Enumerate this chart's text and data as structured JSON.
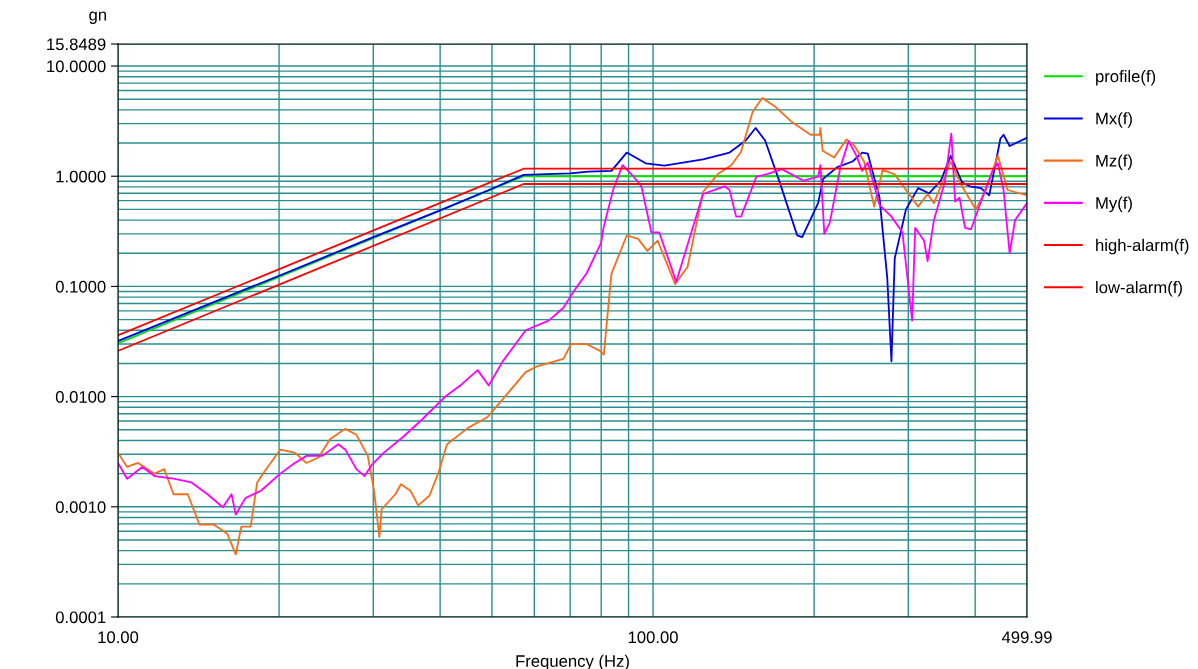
{
  "chart_data": {
    "type": "line",
    "xlabel": "Frequency (Hz)",
    "ylabel": "gn",
    "log": "xy",
    "grid": true,
    "legend": "right",
    "line_style": "solid",
    "marker": "none",
    "xlim": [
      10,
      499.99
    ],
    "ylim": [
      0.0001,
      15.8489
    ],
    "xticks": [
      {
        "value": 10,
        "label": "10.00"
      },
      {
        "value": 100,
        "label": "100.00"
      },
      {
        "value": 499.99,
        "label": "499.99"
      }
    ],
    "yticks": [
      {
        "value": 0.0001,
        "label": "0.0001"
      },
      {
        "value": 0.001,
        "label": "0.0010"
      },
      {
        "value": 0.01,
        "label": "0.0100"
      },
      {
        "value": 0.1,
        "label": "0.1000"
      },
      {
        "value": 1,
        "label": "1.0000"
      },
      {
        "value": 10,
        "label": "10.0000"
      },
      {
        "value": 15.8489,
        "label": "15.8489"
      }
    ],
    "series": [
      {
        "name": "profile(f)",
        "color": "#00e000",
        "x": [
          10,
          57.3,
          499.99
        ],
        "values": [
          0.0305,
          1,
          1
        ]
      },
      {
        "name": "Mx(f)",
        "color": "#0000e0",
        "x": [
          10,
          20,
          30,
          40,
          50,
          57.3,
          70,
          75.7,
          83.6,
          89.3,
          96.9,
          105,
          124,
          139,
          149,
          155.5,
          162,
          172.5,
          186,
          190,
          203.5,
          208,
          221,
          236,
          246,
          252,
          265,
          274,
          279,
          283,
          297,
          313,
          328,
          345,
          360,
          378,
          391,
          410,
          425,
          446,
          452,
          464,
          499.99
        ],
        "values": [
          0.032,
          0.125,
          0.28,
          0.49,
          0.77,
          1.03,
          1.06,
          1.1,
          1.12,
          1.64,
          1.31,
          1.25,
          1.42,
          1.64,
          2.11,
          2.74,
          2.11,
          0.88,
          0.29,
          0.28,
          0.57,
          0.95,
          1.21,
          1.36,
          1.64,
          1.6,
          0.64,
          0.12,
          0.021,
          0.18,
          0.5,
          0.78,
          0.7,
          0.91,
          1.53,
          0.88,
          0.81,
          0.78,
          0.67,
          2.2,
          2.38,
          1.88,
          2.23
        ]
      },
      {
        "name": "Mz(f)",
        "color": "#f26f1c",
        "x": [
          10,
          10.4,
          10.9,
          11.7,
          12.2,
          12.7,
          13.5,
          14.2,
          15.1,
          16,
          16.6,
          17,
          17.7,
          18.2,
          18.8,
          20.1,
          21.4,
          22.5,
          23.7,
          24.9,
          26.6,
          27.9,
          29.3,
          30.1,
          30.8,
          31.1,
          33,
          33.8,
          35.2,
          36.4,
          38.2,
          39.8,
          41.2,
          45.1,
          49,
          51.4,
          57.8,
          60.7,
          68,
          70.3,
          75.1,
          79.6,
          80.9,
          83.6,
          89.3,
          93.8,
          97.6,
          102,
          110,
          116,
          124,
          132,
          140,
          146,
          153.5,
          160,
          169,
          181,
          197,
          205,
          205.5,
          207.5,
          218,
          230,
          238,
          248,
          259,
          268.5,
          283,
          297,
          313,
          326,
          335,
          360,
          378,
          401,
          419,
          441,
          460,
          499.99
        ],
        "values": [
          0.0031,
          0.0023,
          0.0025,
          0.002,
          0.0022,
          0.0013,
          0.0013,
          0.00069,
          0.00069,
          0.00057,
          0.00037,
          0.00066,
          0.00066,
          0.00166,
          0.0021,
          0.0033,
          0.0031,
          0.0025,
          0.0028,
          0.0041,
          0.0051,
          0.0045,
          0.0029,
          0.0014,
          0.00053,
          0.00095,
          0.0013,
          0.0016,
          0.0014,
          0.00103,
          0.00126,
          0.0021,
          0.0037,
          0.0052,
          0.0065,
          0.0085,
          0.0167,
          0.0188,
          0.022,
          0.03,
          0.03,
          0.026,
          0.024,
          0.13,
          0.29,
          0.27,
          0.21,
          0.26,
          0.105,
          0.15,
          0.72,
          1.04,
          1.26,
          1.66,
          3.83,
          5.13,
          4.3,
          3.16,
          2.38,
          2.38,
          2.74,
          1.7,
          1.48,
          2.16,
          1.88,
          1.36,
          0.53,
          1.14,
          1.04,
          0.75,
          0.53,
          0.69,
          0.57,
          1.36,
          0.81,
          0.5,
          0.75,
          1.54,
          0.75,
          0.67
        ]
      },
      {
        "name": "My(f)",
        "color": "#ff00ff",
        "x": [
          10,
          10.4,
          11.1,
          11.7,
          12.7,
          13.7,
          14.7,
          15.7,
          16.3,
          16.6,
          17.3,
          18.5,
          20.1,
          21.4,
          22.5,
          24.1,
          25.8,
          26.6,
          27.9,
          28.9,
          29.8,
          31.4,
          34.1,
          37,
          40.8,
          43.6,
          47,
          49.3,
          52.4,
          57.8,
          63.8,
          68,
          71.6,
          75.1,
          80,
          80.8,
          84.2,
          87.7,
          92,
          95.1,
          99.3,
          102.7,
          110.5,
          124,
          136,
          139,
          143,
          146,
          156,
          164,
          174,
          191,
          203.5,
          205.5,
          209,
          214,
          224,
          232,
          240,
          246,
          252,
          265,
          279,
          292.5,
          305,
          309,
          321,
          326,
          335,
          351,
          361,
          367,
          374,
          383,
          393,
          415,
          431,
          441,
          452,
          464,
          475,
          499.99
        ],
        "values": [
          0.0025,
          0.0018,
          0.0023,
          0.0019,
          0.0018,
          0.00167,
          0.0013,
          0.00099,
          0.0013,
          0.00085,
          0.0012,
          0.0014,
          0.002,
          0.0025,
          0.0029,
          0.0029,
          0.0037,
          0.0033,
          0.0022,
          0.0019,
          0.0024,
          0.0031,
          0.0043,
          0.0062,
          0.0099,
          0.0126,
          0.0174,
          0.0126,
          0.021,
          0.04,
          0.049,
          0.064,
          0.095,
          0.131,
          0.25,
          0.34,
          0.75,
          1.26,
          0.99,
          0.81,
          0.31,
          0.31,
          0.11,
          0.69,
          0.81,
          0.75,
          0.43,
          0.43,
          0.99,
          1.05,
          1.16,
          0.91,
          0.99,
          1.26,
          0.3,
          0.38,
          1.21,
          2.08,
          1.53,
          1.12,
          1.33,
          0.55,
          0.43,
          0.31,
          0.049,
          0.34,
          0.26,
          0.17,
          0.4,
          0.88,
          2.43,
          0.59,
          0.64,
          0.34,
          0.33,
          0.69,
          1.12,
          1.31,
          0.75,
          0.2,
          0.4,
          0.57
        ]
      },
      {
        "name": "high-alarm(f)",
        "color": "#ff0000",
        "x": [
          10,
          57.3,
          499.99
        ],
        "values": [
          0.036,
          1.17,
          1.17
        ]
      },
      {
        "name": "low-alarm(f)",
        "color": "#ff0000",
        "x": [
          10,
          57.3,
          499.99
        ],
        "values": [
          0.026,
          0.85,
          0.85
        ]
      }
    ]
  }
}
